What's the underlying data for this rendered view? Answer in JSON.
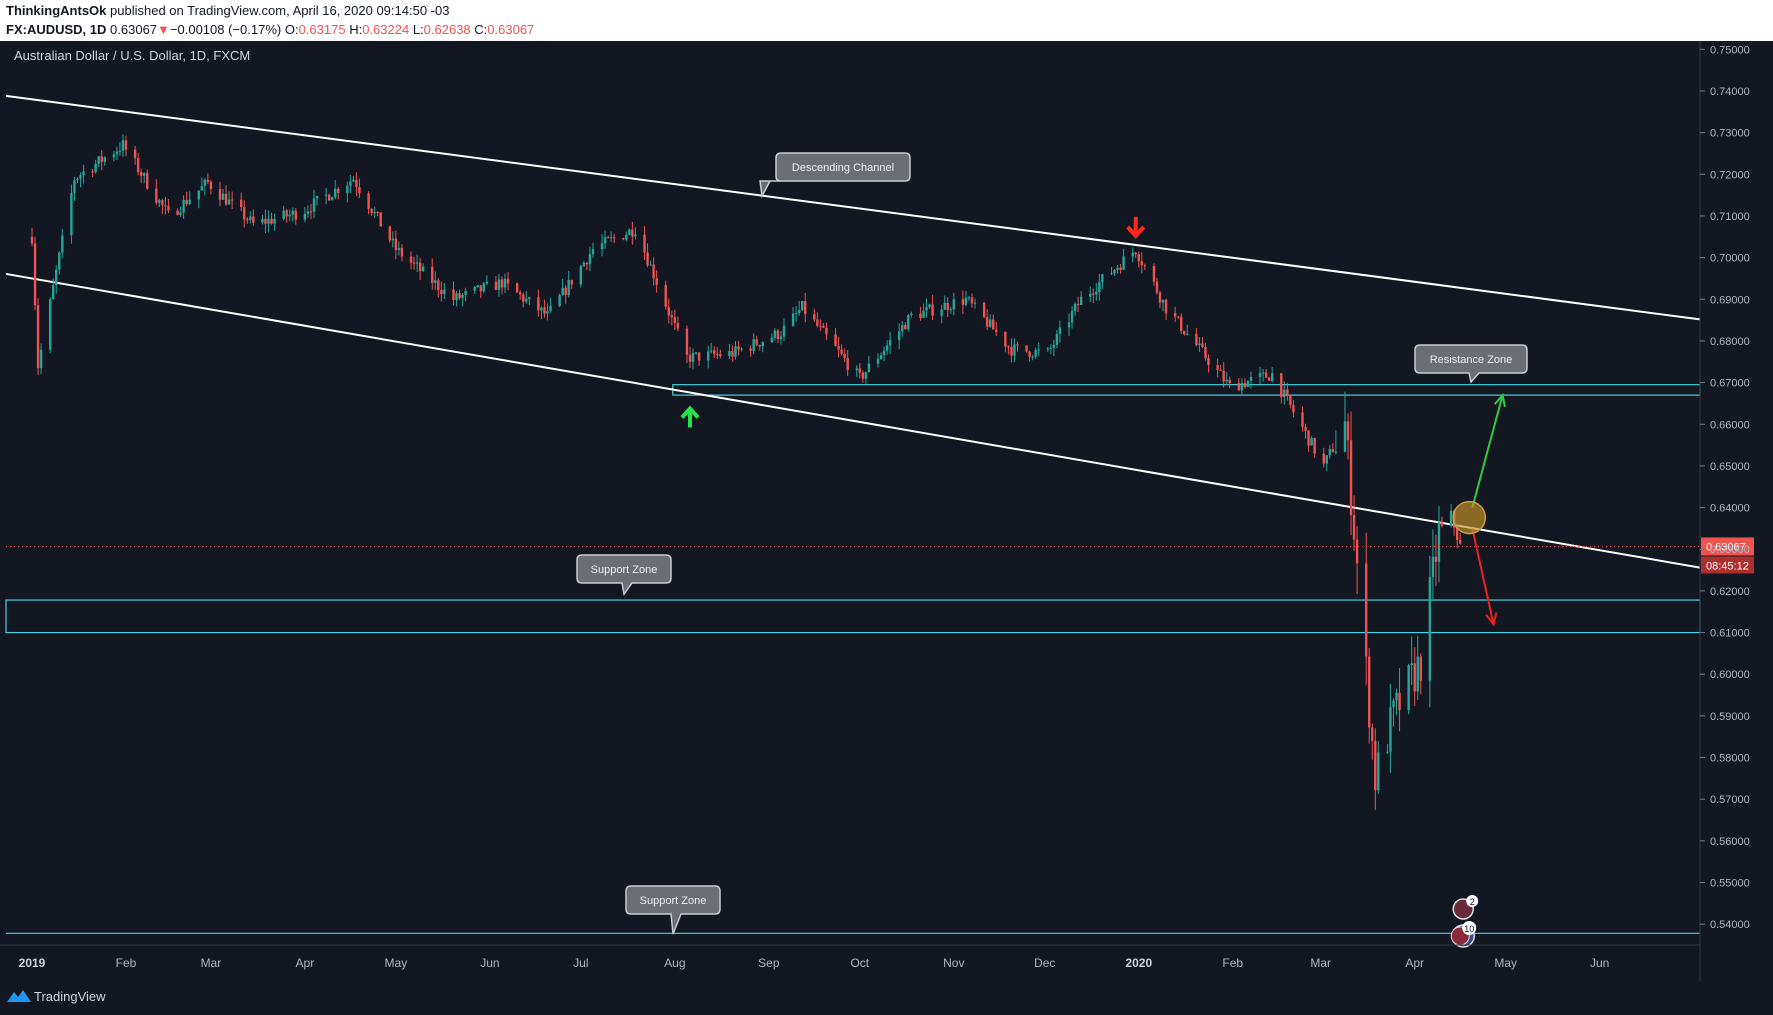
{
  "header": {
    "author": "ThinkingAntsOk",
    "published": "published on TradingView.com, April 16, 2020 09:14:50 -03",
    "symbol": "FX:AUDUSD, 1D",
    "last": "0.63067",
    "change": "−0.00108 (−0.17%)",
    "o_label": "O:",
    "o": "0.63175",
    "h_label": "H:",
    "h": "0.63224",
    "l_label": "L:",
    "l": "0.62638",
    "c_label": "C:",
    "c": "0.63067"
  },
  "chart_title": "Australian Dollar / U.S. Dollar, 1D, FXCM",
  "price_tag": "0.63067",
  "countdown": "08:45:12",
  "event_badges": [
    "2",
    "10"
  ],
  "brand": "TradingView",
  "colors": {
    "bg": "#131722",
    "up": "#26a69a",
    "down": "#ef5350",
    "zone": "#4dd0e1",
    "channel": "#ffffff"
  },
  "chart_data": {
    "type": "candlestick",
    "title": "Australian Dollar / U.S. Dollar, 1D, FXCM",
    "xlabel": "",
    "ylabel": "",
    "ylim": [
      0.535,
      0.752
    ],
    "x_ticks": [
      "2019",
      "Feb",
      "Mar",
      "Apr",
      "May",
      "Jun",
      "Jul",
      "Aug",
      "Sep",
      "Oct",
      "Nov",
      "Dec",
      "2020",
      "Feb",
      "Mar",
      "Apr",
      "May",
      "Jun"
    ],
    "y_ticks": [
      "0.75000",
      "0.74000",
      "0.73000",
      "0.72000",
      "0.71000",
      "0.70000",
      "0.69000",
      "0.68000",
      "0.67000",
      "0.66000",
      "0.65000",
      "0.64000",
      "0.63000",
      "0.62000",
      "0.61000",
      "0.60000",
      "0.59000",
      "0.58000",
      "0.57000",
      "0.56000",
      "0.55000",
      "0.54000"
    ],
    "price_anchors": [
      [
        "2019-01-01",
        0.705
      ],
      [
        "2019-01-03",
        0.674
      ],
      [
        "2019-01-15",
        0.719
      ],
      [
        "2019-01-31",
        0.727
      ],
      [
        "2019-02-15",
        0.71
      ],
      [
        "2019-02-28",
        0.718
      ],
      [
        "2019-03-15",
        0.708
      ],
      [
        "2019-03-31",
        0.711
      ],
      [
        "2019-04-17",
        0.719
      ],
      [
        "2019-05-01",
        0.702
      ],
      [
        "2019-05-20",
        0.69
      ],
      [
        "2019-06-05",
        0.694
      ],
      [
        "2019-06-20",
        0.686
      ],
      [
        "2019-07-05",
        0.702
      ],
      [
        "2019-07-19",
        0.707
      ],
      [
        "2019-08-05",
        0.676
      ],
      [
        "2019-08-20",
        0.677
      ],
      [
        "2019-09-05",
        0.682
      ],
      [
        "2019-09-12",
        0.688
      ],
      [
        "2019-10-01",
        0.671
      ],
      [
        "2019-10-18",
        0.686
      ],
      [
        "2019-11-05",
        0.69
      ],
      [
        "2019-11-20",
        0.678
      ],
      [
        "2019-12-02",
        0.677
      ],
      [
        "2019-12-13",
        0.69
      ],
      [
        "2019-12-31",
        0.702
      ],
      [
        "2020-01-10",
        0.688
      ],
      [
        "2020-01-31",
        0.669
      ],
      [
        "2020-02-14",
        0.672
      ],
      [
        "2020-03-02",
        0.65
      ],
      [
        "2020-03-09",
        0.66
      ],
      [
        "2020-03-12",
        0.635
      ],
      [
        "2020-03-19",
        0.575
      ],
      [
        "2020-03-25",
        0.59
      ],
      [
        "2020-04-03",
        0.603
      ],
      [
        "2020-04-09",
        0.634
      ],
      [
        "2020-04-13",
        0.638
      ],
      [
        "2020-04-16",
        0.6307
      ]
    ],
    "annotations": {
      "descending_channel": {
        "label": "Descending Channel",
        "upper": [
          [
            "2019-01-01",
            0.738
          ],
          [
            "2020-06-15",
            0.687
          ]
        ],
        "lower": [
          [
            "2019-01-01",
            0.695
          ],
          [
            "2020-06-15",
            0.628
          ]
        ]
      },
      "resistance_zone": {
        "label": "Resistance Zone",
        "range": [
          0.667,
          0.6695
        ]
      },
      "support_zone_1": {
        "label": "Support Zone",
        "range": [
          0.61,
          0.6178
        ]
      },
      "support_zone_2": {
        "label": "Support Zone",
        "level": 0.5378
      },
      "scenario_up": {
        "from": [
          "2020-04-20",
          0.64
        ],
        "to": [
          "2020-04-30",
          0.667
        ]
      },
      "scenario_down": {
        "from": [
          "2020-04-20",
          0.635
        ],
        "to": [
          "2020-04-27",
          0.612
        ]
      }
    }
  }
}
